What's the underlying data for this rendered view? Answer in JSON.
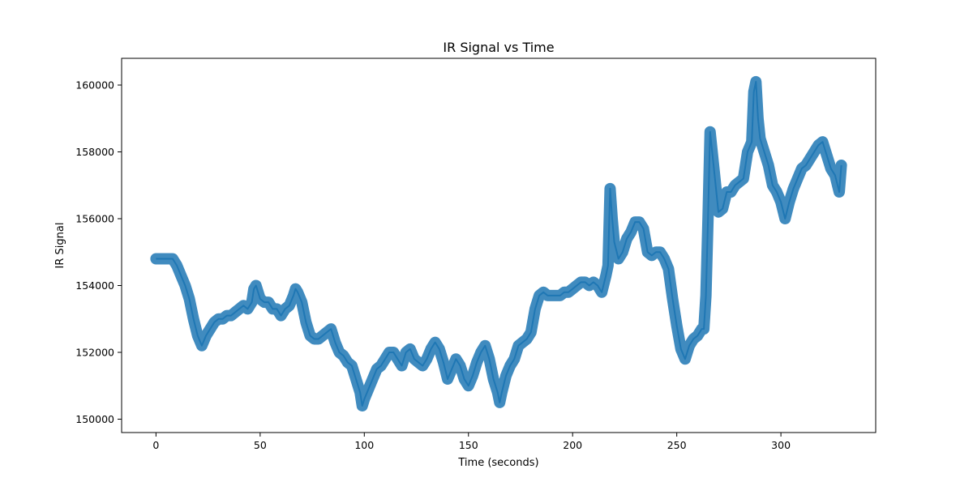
{
  "chart_data": {
    "type": "line",
    "title": "IR Signal vs Time",
    "xlabel": "Time (seconds)",
    "ylabel": "IR Signal",
    "xlim": [
      -16.5,
      345.5
    ],
    "ylim": [
      149600,
      160800
    ],
    "x_ticks": [
      0,
      50,
      100,
      150,
      200,
      250,
      300
    ],
    "x_tick_labels": [
      "0",
      "50",
      "100",
      "150",
      "200",
      "250",
      "300"
    ],
    "y_ticks": [
      150000,
      152000,
      154000,
      156000,
      158000,
      160000
    ],
    "y_tick_labels": [
      "150000",
      "152000",
      "154000",
      "156000",
      "158000",
      "160000"
    ],
    "grid": false,
    "series": [
      {
        "color": "#1f77b4",
        "x": [
          0,
          2,
          4,
          6,
          8,
          10,
          12,
          14,
          16,
          18,
          20,
          22,
          24,
          26,
          28,
          30,
          32,
          34,
          36,
          38,
          40,
          42,
          44,
          46,
          47,
          48,
          50,
          52,
          54,
          56,
          58,
          60,
          62,
          64,
          66,
          67,
          68,
          70,
          72,
          74,
          76,
          78,
          80,
          82,
          84,
          86,
          88,
          90,
          92,
          94,
          96,
          98,
          99,
          100,
          102,
          104,
          106,
          108,
          110,
          112,
          114,
          116,
          118,
          120,
          122,
          124,
          126,
          128,
          130,
          132,
          134,
          136,
          138,
          140,
          142,
          144,
          146,
          148,
          150,
          152,
          154,
          156,
          158,
          160,
          162,
          164,
          165,
          166,
          168,
          170,
          172,
          174,
          176,
          178,
          180,
          182,
          184,
          186,
          188,
          190,
          192,
          194,
          196,
          198,
          200,
          202,
          204,
          206,
          208,
          210,
          212,
          214,
          216,
          217,
          218,
          219,
          220,
          222,
          224,
          226,
          228,
          230,
          232,
          234,
          236,
          238,
          240,
          242,
          244,
          246,
          248,
          250,
          252,
          254,
          256,
          258,
          260,
          262,
          263,
          264,
          265,
          266,
          268,
          270,
          272,
          274,
          276,
          278,
          280,
          282,
          284,
          286,
          287,
          288,
          289,
          290,
          292,
          294,
          296,
          298,
          300,
          302,
          304,
          306,
          308,
          310,
          312,
          314,
          316,
          318,
          320,
          322,
          324,
          326,
          328,
          329
        ],
        "values": [
          154800,
          154800,
          154800,
          154800,
          154800,
          154600,
          154300,
          154000,
          153600,
          153000,
          152500,
          152200,
          152500,
          152700,
          152900,
          153000,
          153000,
          153100,
          153100,
          153200,
          153300,
          153400,
          153300,
          153500,
          153900,
          154000,
          153600,
          153500,
          153500,
          153300,
          153300,
          153100,
          153300,
          153400,
          153700,
          153900,
          153800,
          153500,
          152900,
          152500,
          152400,
          152400,
          152500,
          152600,
          152700,
          152300,
          152000,
          151900,
          151700,
          151600,
          151200,
          150800,
          150400,
          150600,
          150900,
          151200,
          151500,
          151600,
          151800,
          152000,
          152000,
          151800,
          151600,
          152000,
          152100,
          151800,
          151700,
          151600,
          151800,
          152100,
          152300,
          152100,
          151700,
          151200,
          151500,
          151800,
          151600,
          151200,
          151000,
          151300,
          151700,
          152000,
          152200,
          151800,
          151200,
          150800,
          150500,
          150800,
          151300,
          151600,
          151800,
          152200,
          152300,
          152400,
          152600,
          153300,
          153700,
          153800,
          153700,
          153700,
          153700,
          153700,
          153800,
          153800,
          153900,
          154000,
          154100,
          154100,
          154000,
          154100,
          154000,
          153800,
          154300,
          154600,
          156900,
          156000,
          155300,
          154800,
          155000,
          155400,
          155600,
          155900,
          155900,
          155700,
          155000,
          154900,
          155000,
          155000,
          154800,
          154500,
          153600,
          152800,
          152100,
          151800,
          152200,
          152400,
          152500,
          152700,
          152700,
          153700,
          156000,
          158600,
          157400,
          156200,
          156300,
          156800,
          156800,
          157000,
          157100,
          157200,
          158000,
          158300,
          159800,
          160100,
          159000,
          158400,
          158000,
          157600,
          157000,
          156800,
          156500,
          156000,
          156500,
          156900,
          157200,
          157500,
          157600,
          157800,
          158000,
          158200,
          158300,
          157900,
          157500,
          157300,
          156800,
          157600
        ]
      }
    ]
  }
}
